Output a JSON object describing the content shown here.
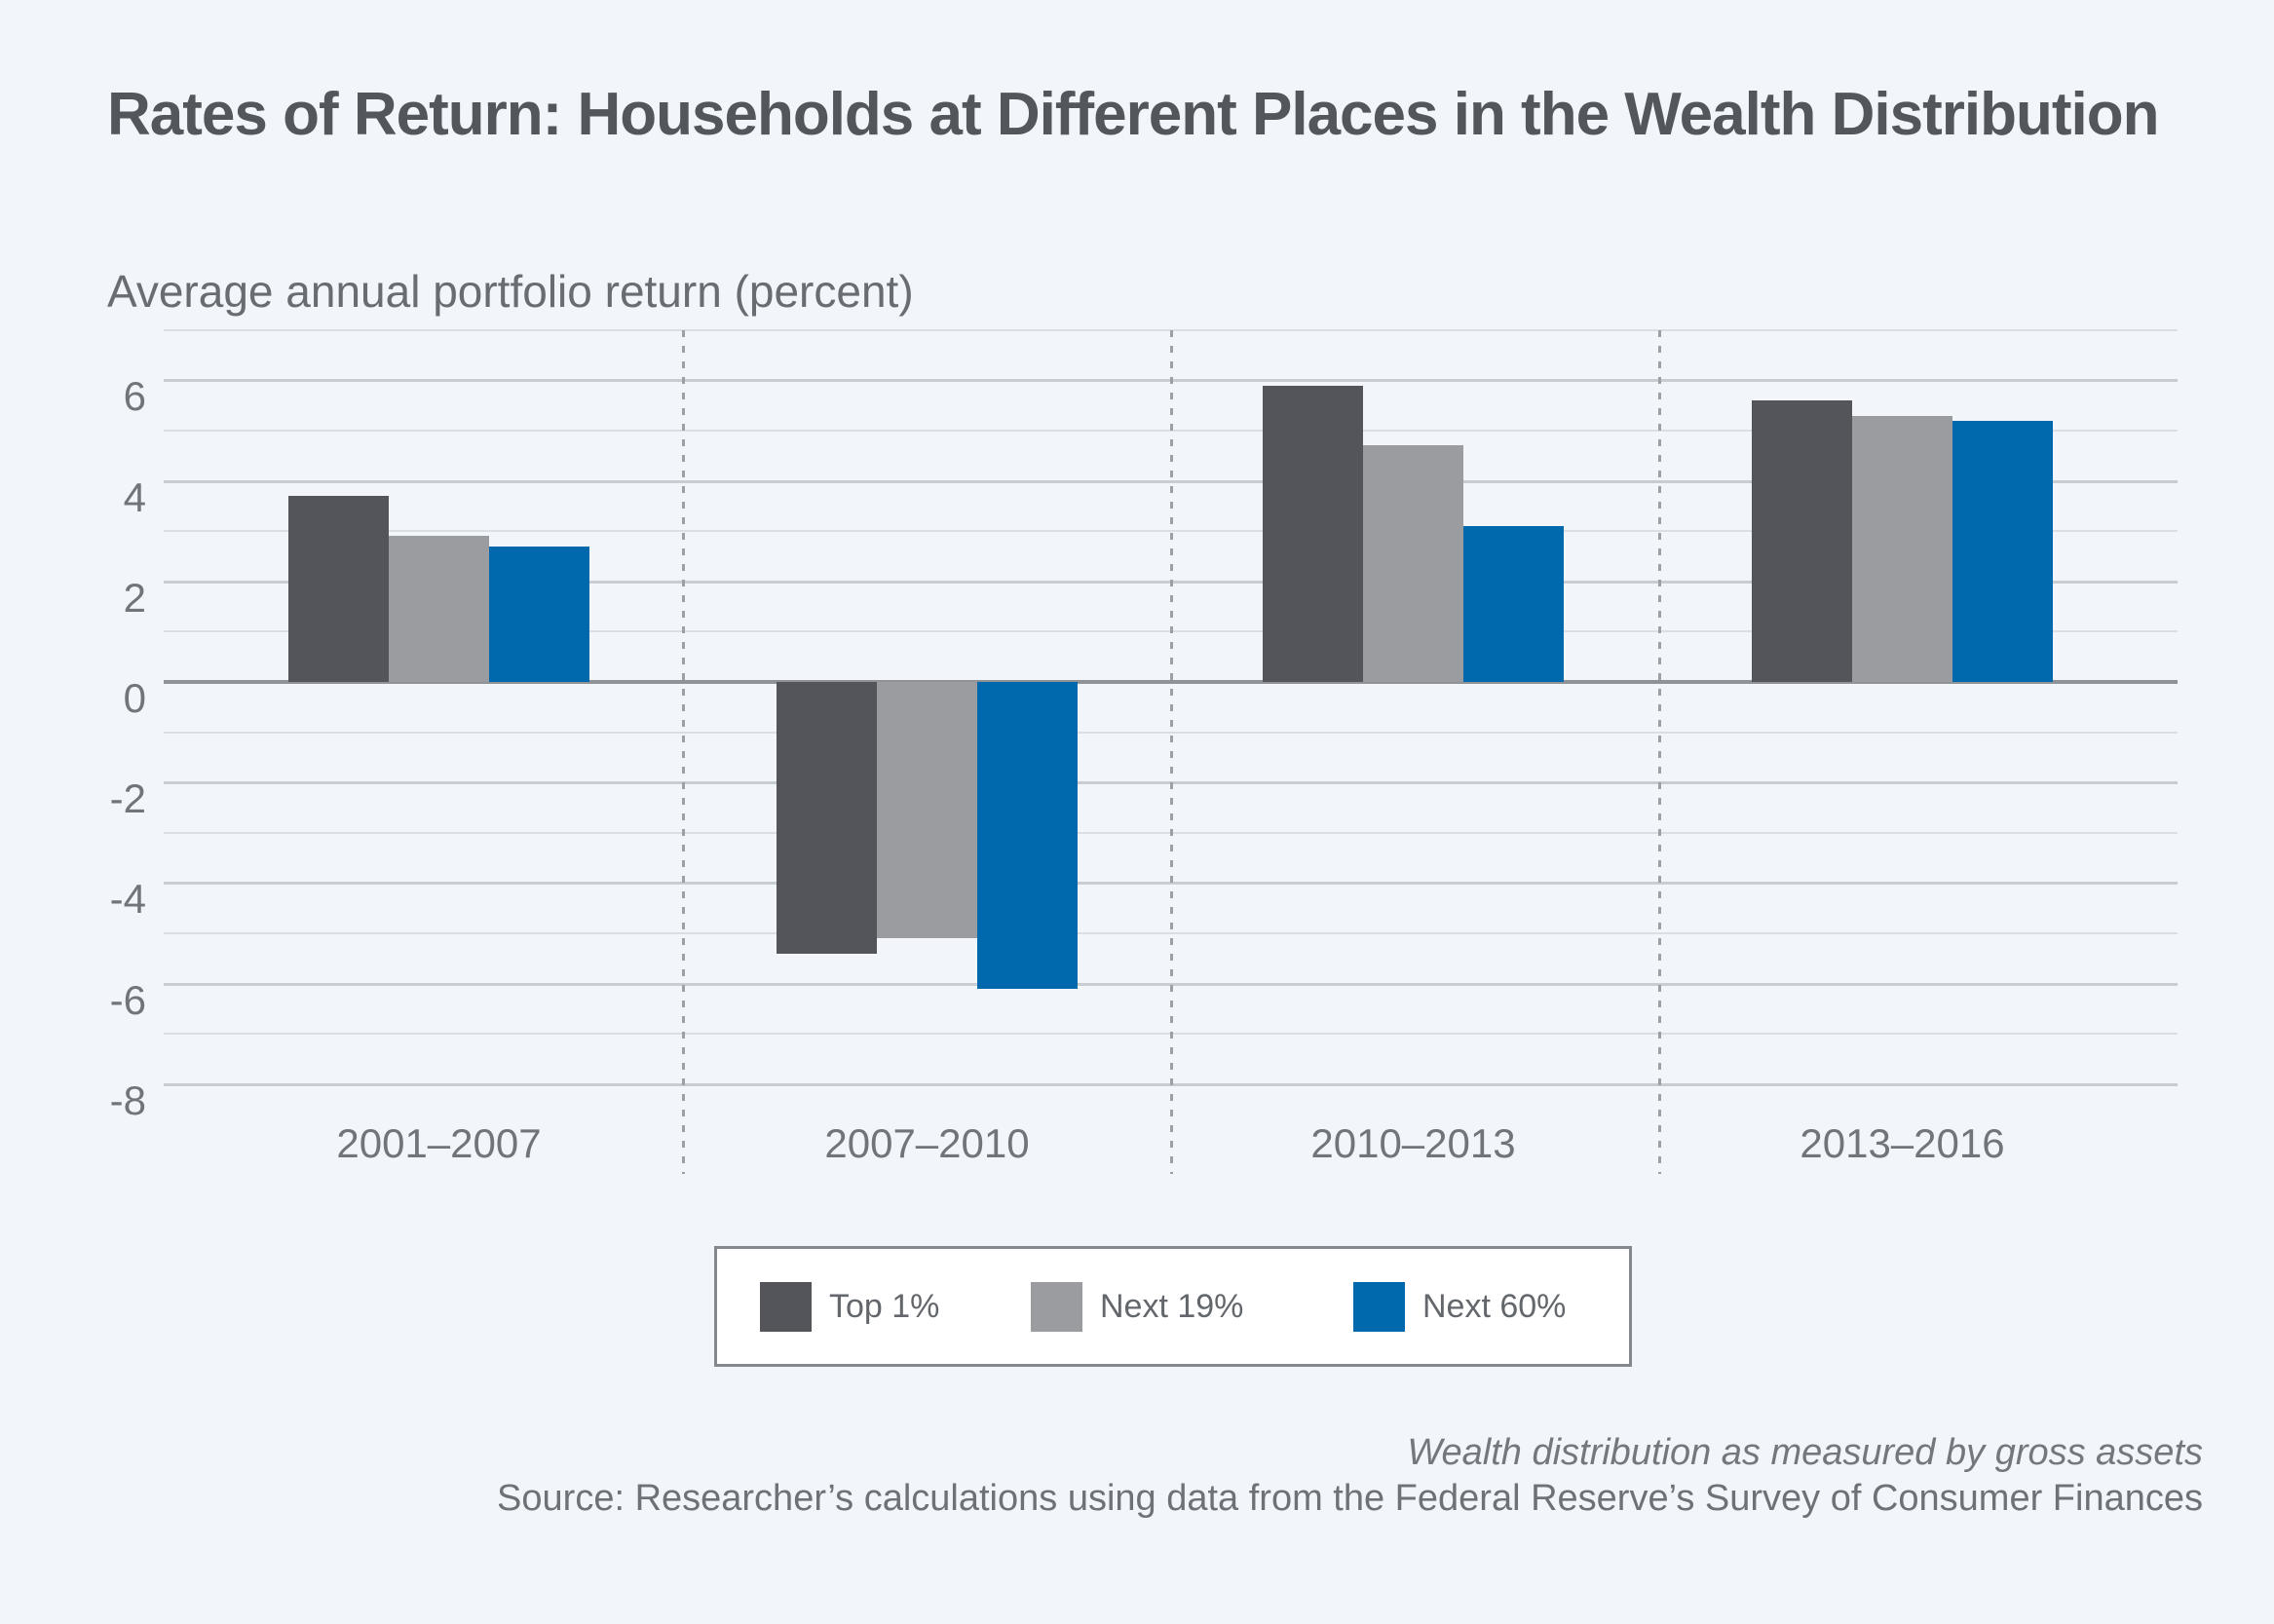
{
  "title": "Rates of Return: Households at Different Places in the Wealth Distribution",
  "axis_title": "Average annual portfolio return (percent)",
  "colors": {
    "background": "#F2F5F9",
    "top1": "#54555A",
    "next19": "#9A9C9F",
    "next60": "#0069AD",
    "zero_line": "#8F9398",
    "gridline": "#DBDFE4",
    "legend_border": "#85888C"
  },
  "chart_data": {
    "type": "bar",
    "title": "Rates of Return: Households at Different Places in the Wealth Distribution",
    "ylabel": "Average annual portfolio return (percent)",
    "xlabel": "",
    "categories": [
      "2001–2007",
      "2007–2010",
      "2010–2013",
      "2013–2016"
    ],
    "series": [
      {
        "name": "Top 1%",
        "color_key": "top1",
        "values": [
          3.7,
          -5.4,
          5.9,
          5.6
        ]
      },
      {
        "name": "Next 19%",
        "color_key": "next19",
        "values": [
          2.9,
          -5.1,
          4.7,
          5.3
        ]
      },
      {
        "name": "Next 60%",
        "color_key": "next60",
        "values": [
          2.7,
          -6.1,
          3.1,
          5.2
        ]
      }
    ],
    "ylim": [
      -8,
      7
    ],
    "y_ticks": [
      6,
      4,
      2,
      0,
      -2,
      -4,
      -6,
      -8
    ],
    "grid": true,
    "group_separators": true,
    "legend_position": "bottom"
  },
  "legend": {
    "items": [
      {
        "label": "Top 1%",
        "color_key": "top1"
      },
      {
        "label": "Next 19%",
        "color_key": "next19"
      },
      {
        "label": "Next 60%",
        "color_key": "next60"
      }
    ]
  },
  "footer": {
    "note": "Wealth distribution as measured by gross assets",
    "source": "Source: Researcher’s calculations using data from the Federal Reserve’s Survey of Consumer Finances"
  }
}
